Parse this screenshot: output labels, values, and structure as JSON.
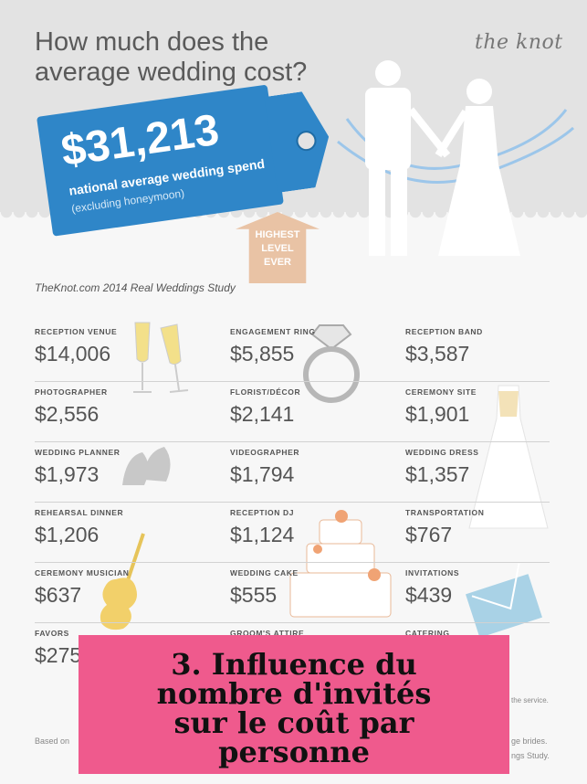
{
  "header": {
    "title_line1": "How much does the",
    "title_line2": "average wedding cost?",
    "logo": "the knot"
  },
  "price_tag": {
    "amount": "$31,213",
    "label": "national average wedding spend",
    "note": "(excluding honeymoon)"
  },
  "badge": {
    "line1": "HIGHEST",
    "line2": "LEVEL",
    "line3": "EVER"
  },
  "source": "TheKnot.com 2014 Real Weddings Study",
  "costs": [
    [
      {
        "label": "RECEPTION VENUE",
        "value": "$14,006"
      },
      {
        "label": "ENGAGEMENT RING",
        "value": "$5,855"
      },
      {
        "label": "RECEPTION BAND",
        "value": "$3,587"
      }
    ],
    [
      {
        "label": "PHOTOGRAPHER",
        "value": "$2,556"
      },
      {
        "label": "FLORIST/DÉCOR",
        "value": "$2,141"
      },
      {
        "label": "CEREMONY SITE",
        "value": "$1,901"
      }
    ],
    [
      {
        "label": "WEDDING PLANNER",
        "value": "$1,973"
      },
      {
        "label": "VIDEOGRAPHER",
        "value": "$1,794"
      },
      {
        "label": "WEDDING DRESS",
        "value": "$1,357"
      }
    ],
    [
      {
        "label": "REHEARSAL DINNER",
        "value": "$1,206"
      },
      {
        "label": "RECEPTION DJ",
        "value": "$1,124"
      },
      {
        "label": "TRANSPORTATION",
        "value": "$767"
      }
    ],
    [
      {
        "label": "CEREMONY MUSICIAN",
        "value": "$637"
      },
      {
        "label": "WEDDING CAKE",
        "value": "$555"
      },
      {
        "label": "INVITATIONS",
        "value": "$439"
      }
    ],
    [
      {
        "label": "FAVORS",
        "value": "$275"
      },
      {
        "label": "GROOM'S ATTIRE",
        "value": ""
      },
      {
        "label": "CATERING",
        "value": ""
      }
    ]
  ],
  "footer": {
    "left": "Based on",
    "right1": "ge brides.",
    "right2": "ngs Study.",
    "service": "the service."
  },
  "overlay": {
    "line1": "3. Influence du",
    "line2": "nombre d'invités",
    "line3": "sur le coût par",
    "line4": "personne"
  },
  "colors": {
    "tag_blue": "#2f86c8",
    "badge_peach": "#e9c3a5",
    "overlay_pink": "#ef5a8d"
  }
}
